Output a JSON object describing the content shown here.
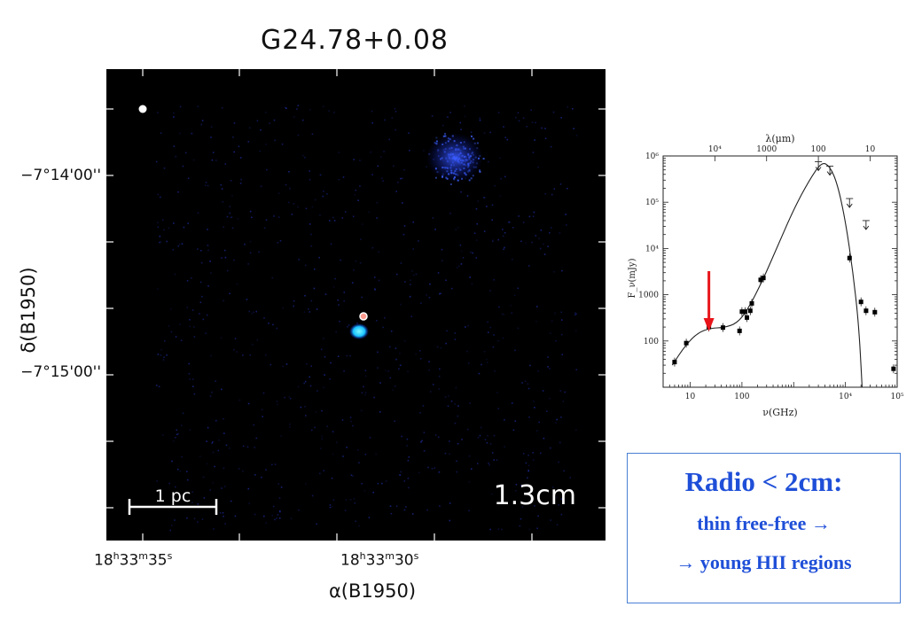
{
  "map": {
    "title": "G24.78+0.08",
    "band_label": "1.3cm",
    "scalebar_label": "1 pc",
    "ylabel": "δ(B1950)",
    "xlabel": "α(B1950)",
    "dec_ticks": [
      "−7°14'00''",
      "−7°15'00''"
    ],
    "ra_ticks": [
      {
        "h": "18",
        "m": "33",
        "s": "35"
      },
      {
        "h": "18",
        "m": "33",
        "s": "30"
      }
    ],
    "ra_tick_units": {
      "h": "h",
      "m": "m",
      "s": "s"
    },
    "colors": {
      "background": "#000000",
      "emission": "#1f3cff",
      "core": "#19c3ff"
    }
  },
  "chart_data": {
    "type": "scatter",
    "xlabel": "ν(GHz)",
    "ylabel": "F_ν(mJy)",
    "top_axis_label": "λ(μm)",
    "x_scale": "log",
    "y_scale": "log",
    "xlim": [
      3,
      100000
    ],
    "ylim": [
      10,
      1000000
    ],
    "x_tick_labels": [
      "10",
      "100",
      "10⁴",
      "10⁵"
    ],
    "y_tick_labels": [
      "100",
      "1000",
      "10⁴",
      "10⁵",
      "10⁶"
    ],
    "top_tick_labels": [
      "10⁴",
      "1000",
      "100",
      "10"
    ],
    "points": [
      {
        "x": 5,
        "y": 35
      },
      {
        "x": 8.4,
        "y": 90
      },
      {
        "x": 23,
        "y": 200
      },
      {
        "x": 43,
        "y": 195
      },
      {
        "x": 90,
        "y": 165
      },
      {
        "x": 100,
        "y": 430
      },
      {
        "x": 115,
        "y": 430
      },
      {
        "x": 125,
        "y": 320
      },
      {
        "x": 145,
        "y": 450
      },
      {
        "x": 155,
        "y": 650
      },
      {
        "x": 230,
        "y": 2100
      },
      {
        "x": 260,
        "y": 2300
      },
      {
        "x": 12000,
        "y": 6200
      },
      {
        "x": 20000,
        "y": 700
      },
      {
        "x": 25000,
        "y": 450
      },
      {
        "x": 37000,
        "y": 420
      },
      {
        "x": 85000,
        "y": 25
      }
    ],
    "upper_limits": [
      {
        "x": 3000,
        "y": 750000
      },
      {
        "x": 5000,
        "y": 600000
      },
      {
        "x": 12000,
        "y": 120000
      },
      {
        "x": 25000,
        "y": 40000
      }
    ],
    "model_curve": [
      {
        "x": 4.5,
        "y": 30
      },
      {
        "x": 8,
        "y": 80
      },
      {
        "x": 14,
        "y": 150
      },
      {
        "x": 25,
        "y": 190
      },
      {
        "x": 45,
        "y": 195
      },
      {
        "x": 80,
        "y": 240
      },
      {
        "x": 130,
        "y": 480
      },
      {
        "x": 250,
        "y": 2000
      },
      {
        "x": 500,
        "y": 12000
      },
      {
        "x": 1000,
        "y": 70000
      },
      {
        "x": 2000,
        "y": 300000
      },
      {
        "x": 3500,
        "y": 750000
      },
      {
        "x": 5000,
        "y": 600000
      },
      {
        "x": 7000,
        "y": 250000
      },
      {
        "x": 10000,
        "y": 40000
      },
      {
        "x": 14000,
        "y": 3000
      },
      {
        "x": 18000,
        "y": 250
      },
      {
        "x": 21000,
        "y": 10
      }
    ],
    "arrow_marker_x": 23,
    "colors": {
      "marker": "#000000",
      "curve": "#222222",
      "arrow": "#e8141a"
    }
  },
  "callout": {
    "heading": "Radio < 2cm:",
    "line1": "thin free-free →",
    "line2": "→ young HII regions",
    "color": "#1f4fd8"
  }
}
